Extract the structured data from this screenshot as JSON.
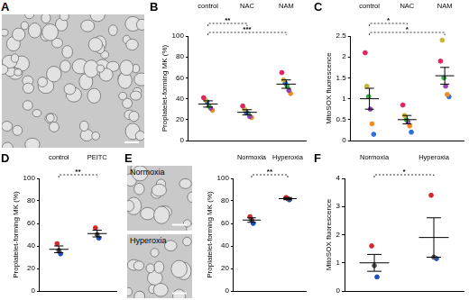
{
  "chart_data": [
    {
      "type": "image",
      "title": "A"
    },
    {
      "type": "scatter",
      "title": "B",
      "y_label": "Proplatelet-forming MK (%)",
      "categories": [
        "control",
        "NAC",
        "NAM"
      ],
      "series": [
        {
          "color": "#e0245e",
          "values": [
            41,
            33,
            65
          ]
        },
        {
          "color": "#c9b63a",
          "values": [
            39,
            30,
            58
          ]
        },
        {
          "color": "#2c6fdc",
          "values": [
            37,
            27,
            55
          ]
        },
        {
          "color": "#3aa845",
          "values": [
            33,
            26,
            52
          ]
        },
        {
          "color": "#8e44ad",
          "values": [
            31,
            23,
            48
          ]
        },
        {
          "color": "#f08a24",
          "values": [
            29,
            22,
            45
          ]
        }
      ],
      "mean": [
        35,
        27,
        54
      ],
      "error": [
        3,
        2.5,
        4
      ],
      "ylim": [
        0,
        100
      ],
      "yticks": [
        0,
        20,
        40,
        60,
        80,
        100
      ],
      "annotations": [
        {
          "between": [
            "control",
            "NAC"
          ],
          "text": "**"
        },
        {
          "between": [
            "control",
            "NAM"
          ],
          "text": "***"
        }
      ]
    },
    {
      "type": "scatter",
      "title": "C",
      "y_label": "MitoSOX fluorescence",
      "categories": [
        "control",
        "NAC",
        "NAM"
      ],
      "series": [
        {
          "color": "#e0245e",
          "values": [
            2.1,
            0.85,
            1.9
          ]
        },
        {
          "color": "#c9b63a",
          "values": [
            1.3,
            0.6,
            2.4
          ]
        },
        {
          "color": "#3aa845",
          "values": [
            1.05,
            0.5,
            1.5
          ]
        },
        {
          "color": "#8e44ad",
          "values": [
            0.75,
            0.45,
            1.3
          ]
        },
        {
          "color": "#f08a24",
          "values": [
            0.4,
            0.35,
            1.1
          ]
        },
        {
          "color": "#2c6fdc",
          "values": [
            0.15,
            0.2,
            1.05
          ]
        }
      ],
      "mean": [
        1,
        0.5,
        1.55
      ],
      "error": [
        0.25,
        0.1,
        0.2
      ],
      "ylim": [
        0,
        2.5
      ],
      "yticks": [
        0,
        0.5,
        1,
        1.5,
        2,
        2.5
      ],
      "annotations": [
        {
          "between": [
            "control",
            "NAC"
          ],
          "text": "*"
        },
        {
          "between": [
            "control",
            "NAM"
          ],
          "text": "*"
        }
      ]
    },
    {
      "type": "scatter",
      "title": "D",
      "y_label": "Proplatelet-forming MK (%)",
      "categories": [
        "control",
        "PEITC"
      ],
      "series": [
        {
          "color": "#d62728",
          "values": [
            42,
            56
          ]
        },
        {
          "color": "#555555",
          "values": [
            36,
            50
          ]
        },
        {
          "color": "#1f4fc0",
          "values": [
            33,
            47
          ]
        }
      ],
      "mean": [
        37,
        51
      ],
      "error": [
        3,
        3
      ],
      "ylim": [
        0,
        100
      ],
      "yticks": [
        0,
        20,
        40,
        60,
        80,
        100
      ],
      "annotations": [
        {
          "between": [
            "control",
            "PEITC"
          ],
          "text": "**"
        }
      ]
    },
    {
      "type": "image",
      "title": "E",
      "labels": [
        "Normoxia",
        "Hyperoxia"
      ]
    },
    {
      "type": "scatter",
      "y_label": "Proplatelet-forming MK (%)",
      "categories": [
        "Normoxia",
        "Hyperoxia"
      ],
      "series": [
        {
          "color": "#d62728",
          "values": [
            66,
            83
          ]
        },
        {
          "color": "#555555",
          "values": [
            63,
            82
          ]
        },
        {
          "color": "#1f4fc0",
          "values": [
            60,
            81
          ]
        }
      ],
      "mean": [
        63,
        82
      ],
      "error": [
        2,
        1
      ],
      "ylim": [
        0,
        100
      ],
      "yticks": [
        0,
        20,
        40,
        60,
        80,
        100
      ],
      "annotations": [
        {
          "between": [
            "Normoxia",
            "Hyperoxia"
          ],
          "text": "**"
        }
      ]
    },
    {
      "type": "scatter",
      "title": "F",
      "y_label": "MitoSOX fluorescence",
      "categories": [
        "Normoxia",
        "Hyperoxia"
      ],
      "series": [
        {
          "color": "#d62728",
          "values": [
            1.6,
            3.4
          ]
        },
        {
          "color": "#555555",
          "values": [
            0.9,
            1.2
          ]
        },
        {
          "color": "#1f4fc0",
          "values": [
            0.5,
            1.15
          ]
        }
      ],
      "mean": [
        1,
        1.9
      ],
      "error": [
        0.3,
        0.7
      ],
      "ylim": [
        0,
        4
      ],
      "yticks": [
        0,
        1,
        2,
        3,
        4
      ],
      "annotations": [
        {
          "between": [
            "Normoxia",
            "Hyperoxia"
          ],
          "text": "*"
        }
      ]
    }
  ]
}
